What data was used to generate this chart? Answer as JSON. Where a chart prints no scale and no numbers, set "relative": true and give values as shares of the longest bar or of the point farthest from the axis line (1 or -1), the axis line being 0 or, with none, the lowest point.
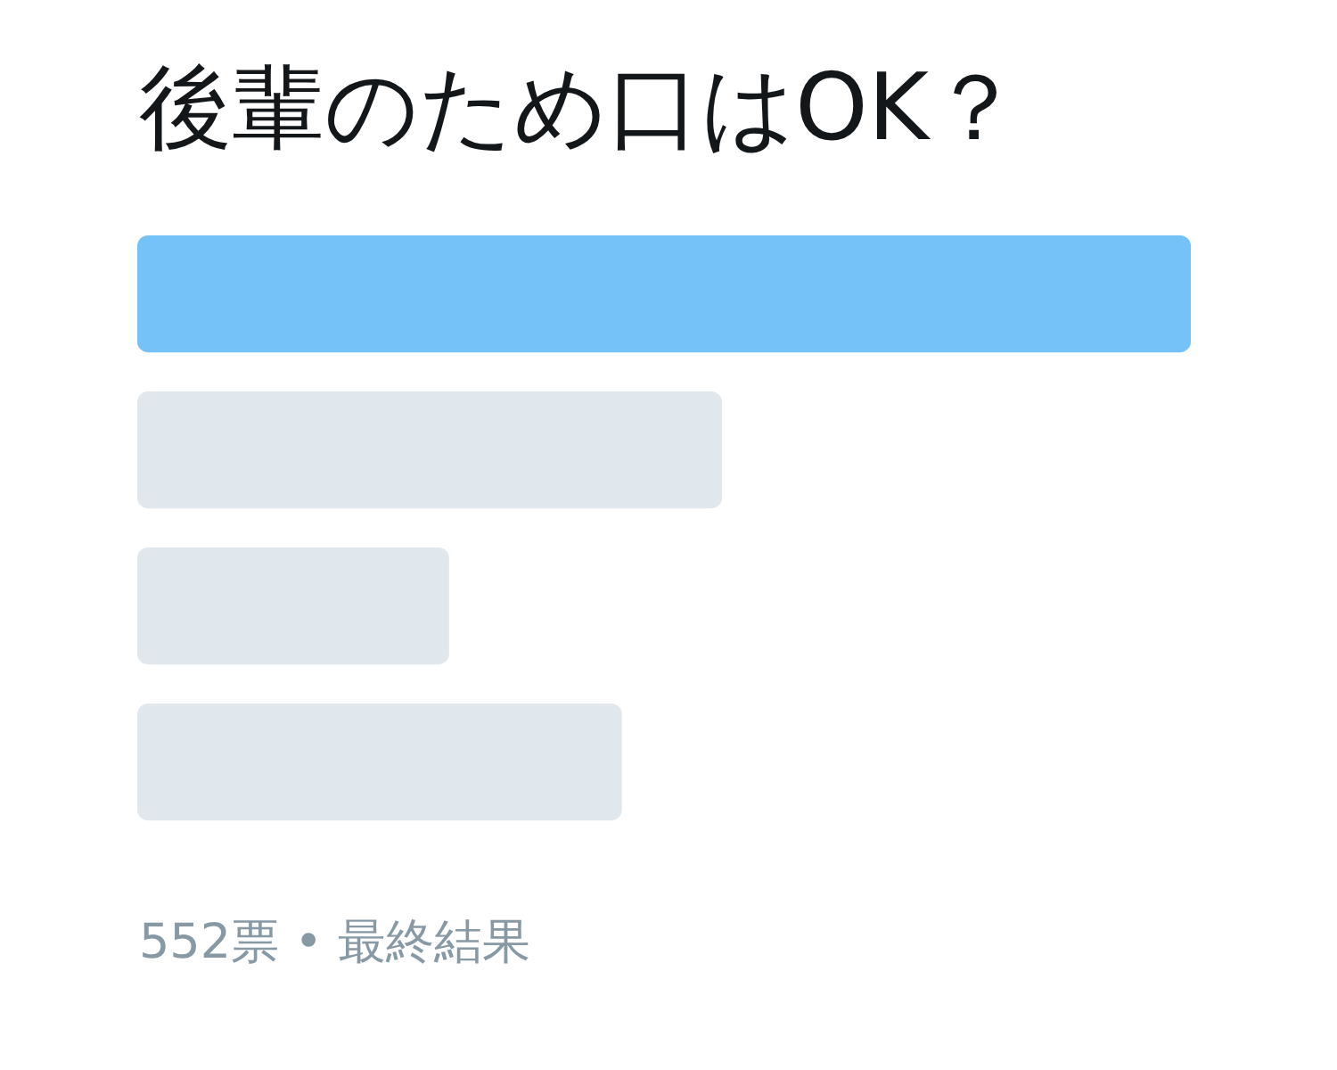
{
  "chart_data": {
    "type": "bar",
    "orientation": "horizontal",
    "relative": true,
    "tick_labels": false,
    "title": "後輩のため口はOK？",
    "categories": [
      null,
      null,
      null,
      null
    ],
    "values": [
      1,
      0.555,
      0.296,
      0.46
    ],
    "colors": [
      "#74c2f7",
      "#e1e8ed",
      "#e1e8ed",
      "#e1e8ed"
    ],
    "annotations": [
      "552票 • 最終結果"
    ]
  }
}
